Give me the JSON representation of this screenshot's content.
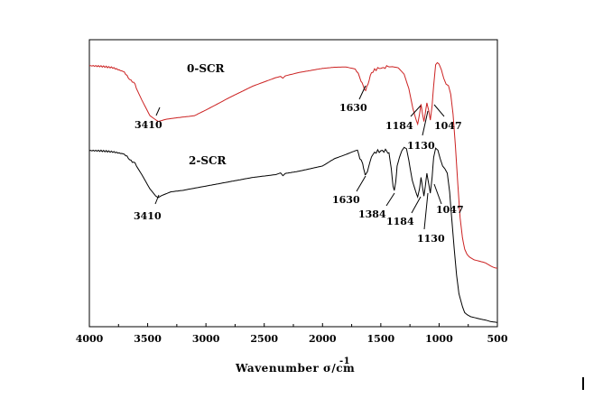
{
  "chart_data": {
    "type": "line",
    "xlabel": "Wavenumber σ/cm",
    "xlabel_superscript": "-1",
    "ylabel": "",
    "xlim": [
      4000,
      500
    ],
    "x_reversed": true,
    "x_ticks": [
      4000,
      3500,
      3000,
      2500,
      2000,
      1500,
      1000,
      500
    ],
    "x_tick_labels": [
      "4000",
      "3500",
      "3000",
      "2500",
      "2000",
      "1500",
      "1000",
      "500"
    ],
    "ylim": [
      0,
      100
    ],
    "y_ticks_visible": false,
    "grid": false,
    "legend": "none",
    "series": [
      {
        "name": "0-SCR",
        "color": "#cc2222",
        "points": [
          [
            4000,
            90.6
          ],
          [
            3900,
            90.4
          ],
          [
            3800,
            90.0
          ],
          [
            3700,
            88.6
          ],
          [
            3620,
            85.0
          ],
          [
            3550,
            79.0
          ],
          [
            3480,
            73.5
          ],
          [
            3410,
            71.5
          ],
          [
            3340,
            72.3
          ],
          [
            3250,
            72.8
          ],
          [
            3100,
            73.5
          ],
          [
            3000,
            75.5
          ],
          [
            2800,
            79.8
          ],
          [
            2600,
            83.8
          ],
          [
            2400,
            86.8
          ],
          [
            2360,
            87.2
          ],
          [
            2340,
            86.6
          ],
          [
            2320,
            87.4
          ],
          [
            2200,
            88.6
          ],
          [
            2000,
            90.0
          ],
          [
            1900,
            90.4
          ],
          [
            1800,
            90.5
          ],
          [
            1720,
            89.8
          ],
          [
            1680,
            87.0
          ],
          [
            1650,
            83.6
          ],
          [
            1630,
            82.0
          ],
          [
            1610,
            84.5
          ],
          [
            1580,
            88.5
          ],
          [
            1540,
            89.8
          ],
          [
            1500,
            90.2
          ],
          [
            1450,
            90.5
          ],
          [
            1400,
            90.6
          ],
          [
            1350,
            90.2
          ],
          [
            1300,
            88.0
          ],
          [
            1260,
            83.0
          ],
          [
            1225,
            76.0
          ],
          [
            1200,
            72.5
          ],
          [
            1184,
            70.6
          ],
          [
            1168,
            74.0
          ],
          [
            1155,
            77.5
          ],
          [
            1142,
            74.0
          ],
          [
            1130,
            71.5
          ],
          [
            1118,
            74.5
          ],
          [
            1105,
            78.0
          ],
          [
            1090,
            75.5
          ],
          [
            1075,
            72.0
          ],
          [
            1060,
            77.0
          ],
          [
            1047,
            84.0
          ],
          [
            1030,
            91.3
          ],
          [
            1015,
            92.0
          ],
          [
            1000,
            91.5
          ],
          [
            980,
            89.5
          ],
          [
            960,
            86.5
          ],
          [
            940,
            84.5
          ],
          [
            920,
            84.0
          ],
          [
            900,
            81.0
          ],
          [
            880,
            74.0
          ],
          [
            860,
            63.0
          ],
          [
            840,
            50.0
          ],
          [
            820,
            38.0
          ],
          [
            800,
            31.0
          ],
          [
            780,
            27.0
          ],
          [
            760,
            25.2
          ],
          [
            740,
            24.3
          ],
          [
            700,
            23.3
          ],
          [
            650,
            22.8
          ],
          [
            600,
            22.2
          ],
          [
            550,
            21.0
          ],
          [
            520,
            20.5
          ],
          [
            500,
            20.4
          ]
        ],
        "annotations": [
          "0-SCR",
          "3410",
          "1630",
          "1184",
          "1130",
          "1047"
        ]
      },
      {
        "name": "2-SCR",
        "color": "#000000",
        "points": [
          [
            4000,
            61.2
          ],
          [
            3900,
            61.0
          ],
          [
            3800,
            60.6
          ],
          [
            3700,
            59.8
          ],
          [
            3620,
            57.5
          ],
          [
            3550,
            53.0
          ],
          [
            3480,
            48.0
          ],
          [
            3430,
            45.5
          ],
          [
            3410,
            45.0
          ],
          [
            3380,
            45.7
          ],
          [
            3300,
            47.0
          ],
          [
            3200,
            47.5
          ],
          [
            3000,
            49.0
          ],
          [
            2800,
            50.5
          ],
          [
            2600,
            52.0
          ],
          [
            2400,
            53.0
          ],
          [
            2360,
            53.6
          ],
          [
            2340,
            52.6
          ],
          [
            2320,
            53.4
          ],
          [
            2200,
            54.2
          ],
          [
            2000,
            56.0
          ],
          [
            1900,
            58.5
          ],
          [
            1800,
            60.0
          ],
          [
            1720,
            61.3
          ],
          [
            1700,
            61.5
          ],
          [
            1680,
            59.0
          ],
          [
            1655,
            57.0
          ],
          [
            1640,
            54.0
          ],
          [
            1630,
            52.5
          ],
          [
            1615,
            54.0
          ],
          [
            1580,
            59.5
          ],
          [
            1540,
            61.0
          ],
          [
            1500,
            61.2
          ],
          [
            1460,
            61.3
          ],
          [
            1430,
            60.5
          ],
          [
            1410,
            55.0
          ],
          [
            1395,
            49.0
          ],
          [
            1384,
            47.5
          ],
          [
            1372,
            50.5
          ],
          [
            1360,
            56.0
          ],
          [
            1340,
            59.0
          ],
          [
            1320,
            61.3
          ],
          [
            1300,
            62.5
          ],
          [
            1280,
            62.0
          ],
          [
            1260,
            58.0
          ],
          [
            1230,
            51.0
          ],
          [
            1200,
            47.0
          ],
          [
            1184,
            45.2
          ],
          [
            1168,
            48.0
          ],
          [
            1155,
            52.0
          ],
          [
            1142,
            48.5
          ],
          [
            1130,
            45.5
          ],
          [
            1118,
            49.0
          ],
          [
            1105,
            53.5
          ],
          [
            1090,
            50.0
          ],
          [
            1075,
            46.5
          ],
          [
            1060,
            52.0
          ],
          [
            1047,
            59.0
          ],
          [
            1030,
            62.2
          ],
          [
            1010,
            61.5
          ],
          [
            990,
            58.5
          ],
          [
            970,
            56.0
          ],
          [
            950,
            55.0
          ],
          [
            930,
            53.5
          ],
          [
            910,
            47.0
          ],
          [
            890,
            37.0
          ],
          [
            870,
            27.0
          ],
          [
            850,
            18.0
          ],
          [
            830,
            11.5
          ],
          [
            800,
            7.0
          ],
          [
            780,
            4.9
          ],
          [
            760,
            4.2
          ],
          [
            730,
            3.5
          ],
          [
            700,
            3.2
          ],
          [
            650,
            2.7
          ],
          [
            600,
            2.3
          ],
          [
            560,
            1.8
          ],
          [
            520,
            1.6
          ],
          [
            500,
            1.5
          ]
        ],
        "annotations": [
          "2-SCR",
          "3410",
          "1630",
          "1384",
          "1184",
          "1130",
          "1047"
        ]
      }
    ],
    "labels": {
      "red_series": "0-SCR",
      "black_series": "2-SCR",
      "r3410": "3410",
      "r1630": "1630",
      "r1184": "1184",
      "r1130": "1130",
      "r1047": "1047",
      "b3410": "3410",
      "b1630": "1630",
      "b1384": "1384",
      "b1184": "1184",
      "b1130": "1130",
      "b1047": "1047"
    }
  }
}
